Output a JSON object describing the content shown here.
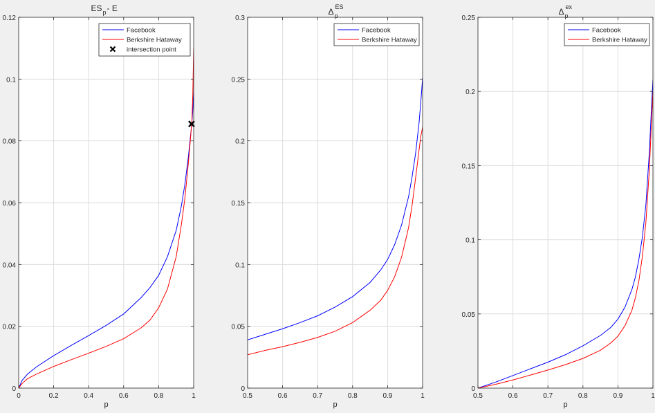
{
  "figure_background": "#f0f0f0",
  "colors": {
    "facebook": "#0000ff",
    "berkshire": "#ff0000",
    "marker": "#000000",
    "grid": "#dcdcdc"
  },
  "chart_data": [
    {
      "type": "line",
      "title": {
        "main": "ES",
        "sub": "p",
        "tail": " - E"
      },
      "xlabel": "p",
      "xlim": [
        0,
        1
      ],
      "ylim": [
        0,
        0.12
      ],
      "xticks": [
        0,
        0.2,
        0.4,
        0.6,
        0.8,
        1
      ],
      "xticklabels": [
        "0",
        "0.2",
        "0.4",
        "0.6",
        "0.8",
        "1"
      ],
      "yticks": [
        0,
        0.02,
        0.04,
        0.06,
        0.08,
        0.1,
        0.12
      ],
      "yticklabels": [
        "0",
        "0.02",
        "0.04",
        "0.06",
        "0.08",
        "0.1",
        "0.12"
      ],
      "grid": true,
      "legend_position": "top-right",
      "series": [
        {
          "name": "Facebook",
          "color": "#0000ff",
          "x": [
            0,
            0.02,
            0.05,
            0.1,
            0.2,
            0.3,
            0.4,
            0.5,
            0.6,
            0.7,
            0.75,
            0.8,
            0.85,
            0.9,
            0.93,
            0.95,
            0.97,
            0.98,
            0.99,
            0.995,
            1.0
          ],
          "y": [
            0,
            0.0025,
            0.0045,
            0.0068,
            0.0105,
            0.0138,
            0.017,
            0.0203,
            0.024,
            0.0293,
            0.0325,
            0.0365,
            0.0425,
            0.051,
            0.059,
            0.066,
            0.075,
            0.0805,
            0.086,
            0.09,
            0.096
          ]
        },
        {
          "name": "Berkshire Hataway",
          "color": "#ff0000",
          "x": [
            0,
            0.02,
            0.05,
            0.1,
            0.2,
            0.3,
            0.4,
            0.5,
            0.6,
            0.7,
            0.75,
            0.8,
            0.85,
            0.9,
            0.93,
            0.95,
            0.97,
            0.98,
            0.99,
            0.995,
            1.0
          ],
          "y": [
            0,
            0.0015,
            0.003,
            0.0045,
            0.007,
            0.0092,
            0.0113,
            0.0135,
            0.016,
            0.0195,
            0.022,
            0.026,
            0.032,
            0.0425,
            0.053,
            0.0615,
            0.073,
            0.0795,
            0.0865,
            0.095,
            0.11
          ]
        },
        {
          "name": "intersection point",
          "type": "marker",
          "marker": "x",
          "color": "#000000",
          "x": [
            0.988
          ],
          "y": [
            0.0855
          ]
        }
      ]
    },
    {
      "type": "line",
      "title": {
        "main": "Δ",
        "sub": "p",
        "sup": "ES"
      },
      "xlabel": "p",
      "xlim": [
        0.5,
        1
      ],
      "ylim": [
        0,
        0.3
      ],
      "xticks": [
        0.5,
        0.6,
        0.7,
        0.8,
        0.9,
        1
      ],
      "xticklabels": [
        "0.5",
        "0.6",
        "0.7",
        "0.8",
        "0.9",
        "1"
      ],
      "yticks": [
        0,
        0.05,
        0.1,
        0.15,
        0.2,
        0.25,
        0.3
      ],
      "yticklabels": [
        "0",
        "0.05",
        "0.1",
        "0.15",
        "0.2",
        "0.25",
        "0.3"
      ],
      "grid": true,
      "legend_position": "top-right",
      "series": [
        {
          "name": "Facebook",
          "color": "#0000ff",
          "x": [
            0.5,
            0.55,
            0.6,
            0.65,
            0.7,
            0.75,
            0.8,
            0.85,
            0.88,
            0.9,
            0.92,
            0.94,
            0.96,
            0.97,
            0.98,
            0.99,
            0.995,
            1.0
          ],
          "y": [
            0.039,
            0.0435,
            0.048,
            0.053,
            0.0585,
            0.0655,
            0.074,
            0.0855,
            0.0955,
            0.104,
            0.116,
            0.132,
            0.155,
            0.171,
            0.19,
            0.215,
            0.232,
            0.251
          ]
        },
        {
          "name": "Berkshire Hataway",
          "color": "#ff0000",
          "x": [
            0.5,
            0.55,
            0.6,
            0.65,
            0.7,
            0.75,
            0.8,
            0.85,
            0.88,
            0.9,
            0.92,
            0.94,
            0.96,
            0.97,
            0.98,
            0.99,
            0.995,
            1.0
          ],
          "y": [
            0.027,
            0.0305,
            0.0335,
            0.037,
            0.041,
            0.046,
            0.053,
            0.063,
            0.071,
            0.079,
            0.09,
            0.106,
            0.13,
            0.148,
            0.17,
            0.193,
            0.204,
            0.211
          ]
        }
      ]
    },
    {
      "type": "line",
      "title": {
        "main": "Δ",
        "sub": "p",
        "sup": "ex"
      },
      "xlabel": "p",
      "xlim": [
        0.5,
        1
      ],
      "ylim": [
        0,
        0.25
      ],
      "xticks": [
        0.5,
        0.6,
        0.7,
        0.8,
        0.9,
        1
      ],
      "xticklabels": [
        "0.5",
        "0.6",
        "0.7",
        "0.8",
        "0.9",
        "1"
      ],
      "yticks": [
        0,
        0.05,
        0.1,
        0.15,
        0.2,
        0.25
      ],
      "yticklabels": [
        "0",
        "0.05",
        "0.1",
        "0.15",
        "0.2",
        "0.25"
      ],
      "grid": true,
      "legend_position": "top-right",
      "series": [
        {
          "name": "Facebook",
          "color": "#0000ff",
          "x": [
            0.5,
            0.55,
            0.6,
            0.65,
            0.7,
            0.75,
            0.8,
            0.85,
            0.88,
            0.9,
            0.92,
            0.94,
            0.95,
            0.96,
            0.97,
            0.98,
            0.99,
            0.995,
            1.0
          ],
          "y": [
            0,
            0.004,
            0.0085,
            0.013,
            0.0175,
            0.0225,
            0.0285,
            0.0355,
            0.041,
            0.0465,
            0.0545,
            0.0665,
            0.075,
            0.087,
            0.102,
            0.124,
            0.16,
            0.185,
            0.208
          ]
        },
        {
          "name": "Berkshire Hataway",
          "color": "#ff0000",
          "x": [
            0.5,
            0.55,
            0.6,
            0.65,
            0.7,
            0.75,
            0.8,
            0.85,
            0.88,
            0.9,
            0.92,
            0.94,
            0.95,
            0.96,
            0.97,
            0.98,
            0.99,
            0.995,
            1.0
          ],
          "y": [
            0,
            0.0025,
            0.0055,
            0.0088,
            0.0122,
            0.0158,
            0.02,
            0.0255,
            0.0305,
            0.035,
            0.042,
            0.0525,
            0.061,
            0.0725,
            0.089,
            0.112,
            0.148,
            0.175,
            0.2
          ]
        }
      ]
    }
  ]
}
